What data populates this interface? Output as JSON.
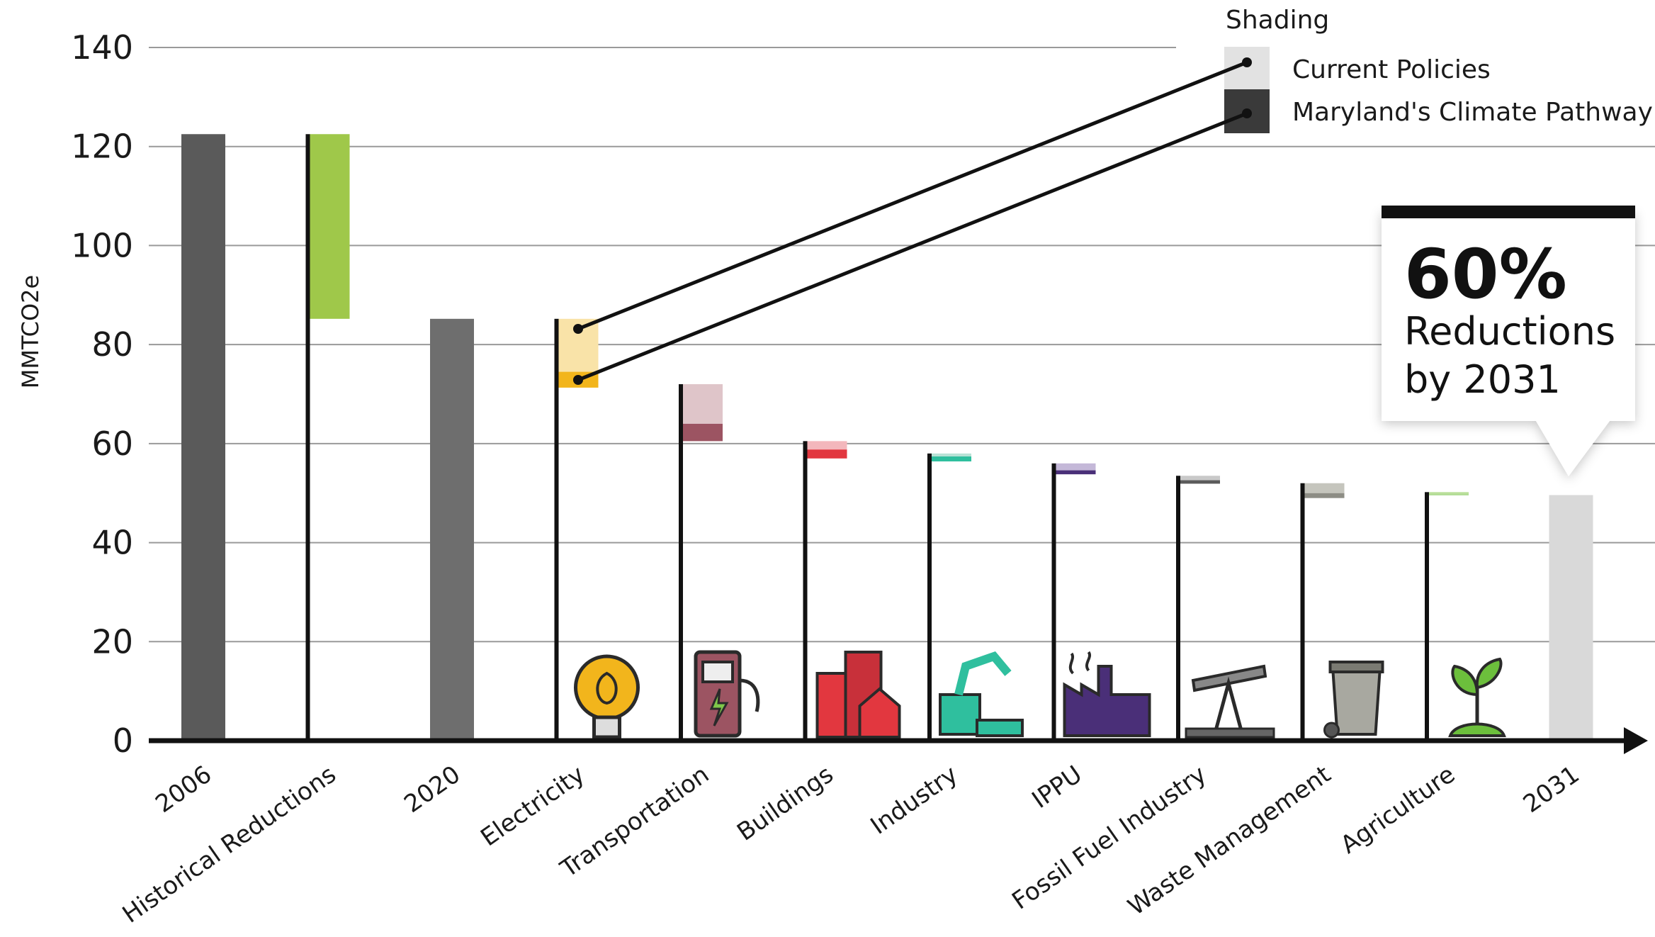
{
  "chart_data": {
    "type": "bar",
    "subtype": "waterfall",
    "ylabel": "MMTCO2e",
    "xlabel": "",
    "ylim": [
      0,
      140
    ],
    "yticks": [
      0,
      20,
      40,
      60,
      80,
      100,
      120,
      140
    ],
    "grid": true,
    "categories": [
      "2006",
      "Historical Reductions",
      "2020",
      "Electricity",
      "Transportation",
      "Buildings",
      "Industry",
      "IPPU",
      "Fossil Fuel Industry",
      "Waste Management",
      "Agriculture",
      "2031"
    ],
    "bars": [
      {
        "category": "2006",
        "kind": "total",
        "value": 122.5,
        "color": "#5a5a5a"
      },
      {
        "category": "Historical Reductions",
        "kind": "reduction",
        "from": 122.5,
        "to": 85.2,
        "color_light": "#9fc84a"
      },
      {
        "category": "2020",
        "kind": "total",
        "value": 85.2,
        "color": "#6e6e6e"
      },
      {
        "category": "Electricity",
        "kind": "reduction",
        "from": 85.2,
        "current_policies_to": 74.5,
        "pathway_to": 71.3,
        "color_light": "#f9e3a8",
        "color_dark": "#f2b51c",
        "icon": "lightbulb-icon"
      },
      {
        "category": "Transportation",
        "kind": "reduction",
        "from": 72.0,
        "current_policies_to": 64.0,
        "pathway_to": 60.5,
        "color_light": "#dfc5c9",
        "color_dark": "#9c5462",
        "icon": "ev-charger-icon"
      },
      {
        "category": "Buildings",
        "kind": "reduction",
        "from": 60.5,
        "current_policies_to": 58.8,
        "pathway_to": 57.0,
        "color_light": "#f3b7bc",
        "color_dark": "#e2373f",
        "icon": "buildings-icon"
      },
      {
        "category": "Industry",
        "kind": "reduction",
        "from": 58.0,
        "current_policies_to": 57.4,
        "pathway_to": 56.4,
        "color_light": "#b8e2d6",
        "color_dark": "#2fbf9e",
        "icon": "robot-arm-icon"
      },
      {
        "category": "IPPU",
        "kind": "reduction",
        "from": 56.0,
        "current_policies_to": 54.6,
        "pathway_to": 53.8,
        "color_light": "#c4b8d8",
        "color_dark": "#4a2f78",
        "icon": "factory-icon"
      },
      {
        "category": "Fossil Fuel Industry",
        "kind": "reduction",
        "from": 53.5,
        "current_policies_to": 52.6,
        "pathway_to": 51.9,
        "color_light": "#c9c9c9",
        "color_dark": "#5b5b5b",
        "icon": "oil-pump-icon"
      },
      {
        "category": "Waste Management",
        "kind": "reduction",
        "from": 52.0,
        "current_policies_to": 50.0,
        "pathway_to": 49.0,
        "color_light": "#c5c5bd",
        "color_dark": "#8d8d85",
        "icon": "trash-can-icon"
      },
      {
        "category": "Agriculture",
        "kind": "reduction",
        "from": 50.2,
        "current_policies_to": 49.7,
        "pathway_to": 49.6,
        "color_light": "#b9df9a",
        "color_dark": "#6cbf3c",
        "icon": "plant-icon"
      },
      {
        "category": "2031",
        "kind": "total",
        "value": 49.6,
        "color": "#d9d9d9"
      }
    ],
    "legend": {
      "title": "Shading",
      "position": "top-right",
      "entries": [
        {
          "label": "Current Policies",
          "color": "#e2e2e2"
        },
        {
          "label": "Maryland's Climate Pathway",
          "color": "#3a3a3a"
        }
      ]
    },
    "callout": {
      "percent": "60%",
      "line1": "Reductions",
      "line2": "by 2031"
    }
  }
}
